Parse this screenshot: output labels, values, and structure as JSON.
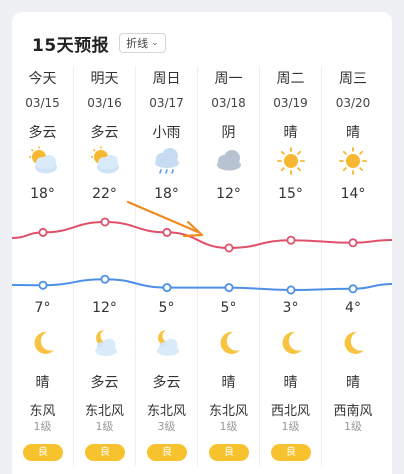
{
  "header": {
    "title": "15天预报",
    "mode_label": "折线"
  },
  "days": [
    {
      "name": "今天",
      "date": "03/15",
      "day_cond": "多云",
      "day_icon": "partly-cloudy-sun-icon",
      "high": "18°",
      "low": "7°",
      "night_cond": "晴",
      "night_icon": "moon-icon",
      "wind": "东风",
      "level": "1级",
      "aqi": "良"
    },
    {
      "name": "明天",
      "date": "03/16",
      "day_cond": "多云",
      "day_icon": "partly-cloudy-sun-icon",
      "high": "22°",
      "low": "12°",
      "night_cond": "多云",
      "night_icon": "cloudy-moon-icon",
      "wind": "东北风",
      "level": "1级",
      "aqi": "良"
    },
    {
      "name": "周日",
      "date": "03/17",
      "day_cond": "小雨",
      "day_icon": "light-rain-icon",
      "high": "18°",
      "low": "5°",
      "night_cond": "多云",
      "night_icon": "cloudy-moon-icon",
      "wind": "东北风",
      "level": "3级",
      "aqi": "良"
    },
    {
      "name": "周一",
      "date": "03/18",
      "day_cond": "阴",
      "day_icon": "overcast-cloud-icon",
      "high": "12°",
      "low": "5°",
      "night_cond": "晴",
      "night_icon": "moon-icon",
      "wind": "东北风",
      "level": "1级",
      "aqi": "良"
    },
    {
      "name": "周二",
      "date": "03/19",
      "day_cond": "晴",
      "day_icon": "sun-icon",
      "high": "15°",
      "low": "3°",
      "night_cond": "晴",
      "night_icon": "moon-icon",
      "wind": "西北风",
      "level": "1级",
      "aqi": "良"
    },
    {
      "name": "周三",
      "date": "03/20",
      "day_cond": "晴",
      "day_icon": "sun-icon",
      "high": "14°",
      "low": "4°",
      "night_cond": "晴",
      "night_icon": "moon-icon",
      "wind": "西南风",
      "level": "1级",
      "aqi": ""
    }
  ],
  "chart_data": {
    "type": "line",
    "x": [
      "03/15",
      "03/16",
      "03/17",
      "03/18",
      "03/19",
      "03/20"
    ],
    "series": [
      {
        "values": [
          18,
          22,
          18,
          12,
          15,
          14
        ]
      },
      {
        "values": [
          7,
          12,
          5,
          5,
          3,
          4
        ]
      }
    ]
  },
  "colors": {
    "high_line": "#e0506a",
    "low_line": "#4e8fe6",
    "aqi_badge": "#f6c22d",
    "annotation_arrow": "#f08a1c"
  }
}
